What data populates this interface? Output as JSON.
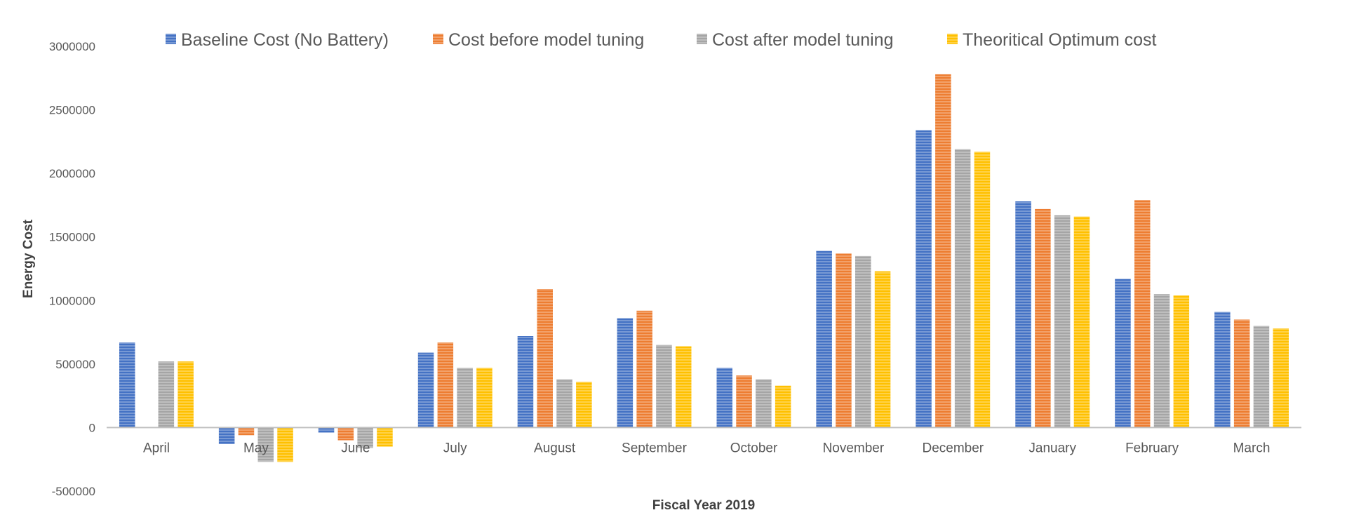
{
  "chart_data": {
    "type": "bar",
    "title": "",
    "xlabel": "Fiscal Year 2019",
    "ylabel": "Energy Cost",
    "ylim": [
      -500000,
      3000000
    ],
    "yticks": [
      -500000,
      0,
      500000,
      1000000,
      1500000,
      2000000,
      2500000,
      3000000
    ],
    "ytick_labels": [
      "-500000",
      "0",
      "500000",
      "1000000",
      "1500000",
      "2000000",
      "2500000",
      "3000000"
    ],
    "grid": false,
    "legend_position": "top",
    "categories": [
      "April",
      "May",
      "June",
      "July",
      "August",
      "September",
      "October",
      "November",
      "December",
      "January",
      "February",
      "March"
    ],
    "series": [
      {
        "name": "Baseline Cost (No Battery)",
        "color": "#4472c4",
        "values": [
          670000,
          -130000,
          -40000,
          590000,
          720000,
          860000,
          470000,
          1390000,
          2340000,
          1780000,
          1170000,
          910000
        ]
      },
      {
        "name": "Cost before model tuning",
        "color": "#ed7d31",
        "values": [
          0,
          -60000,
          -100000,
          670000,
          1090000,
          920000,
          410000,
          1370000,
          2780000,
          1720000,
          1790000,
          850000
        ]
      },
      {
        "name": "Cost after model tuning",
        "color": "#a5a5a5",
        "values": [
          520000,
          -270000,
          -160000,
          470000,
          380000,
          650000,
          380000,
          1350000,
          2190000,
          1670000,
          1050000,
          800000
        ]
      },
      {
        "name": "Theoritical Optimum cost",
        "color": "#ffc000",
        "values": [
          520000,
          -270000,
          -150000,
          470000,
          360000,
          640000,
          330000,
          1230000,
          2170000,
          1660000,
          1040000,
          780000
        ]
      }
    ]
  }
}
